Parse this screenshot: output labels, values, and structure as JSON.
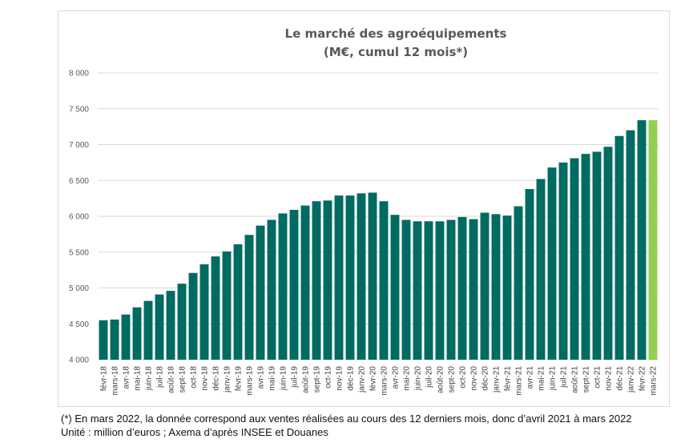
{
  "chart_data": {
    "type": "bar",
    "title_lines": [
      "Le marché des agroéquipements",
      "(M€, cumul 12 mois*)"
    ],
    "xlabel": "",
    "ylabel": "",
    "ylim": [
      4000,
      8000
    ],
    "yticks": [
      4000,
      4500,
      5000,
      5500,
      6000,
      6500,
      7000,
      7500,
      8000
    ],
    "ytick_labels": [
      "4 000",
      "4 500",
      "5 000",
      "5 500",
      "6 000",
      "6 500",
      "7 000",
      "7 500",
      "8 000"
    ],
    "grid": true,
    "legend": "none",
    "categories": [
      "févr-18",
      "mars-18",
      "avr-18",
      "mai-18",
      "juin-18",
      "juil-18",
      "août-18",
      "sept-18",
      "oct-18",
      "nov-18",
      "déc-18",
      "janv-19",
      "févr-19",
      "mars-19",
      "avr-19",
      "mai-19",
      "juin-19",
      "juil-19",
      "août-19",
      "sept-19",
      "oct-19",
      "nov-19",
      "déc-19",
      "janv-20",
      "févr-20",
      "mars-20",
      "avr-20",
      "mai-20",
      "juin-20",
      "juil-20",
      "août-20",
      "sept-20",
      "oct-20",
      "nov-20",
      "déc-20",
      "janv-21",
      "févr-21",
      "mars-21",
      "avr-21",
      "mai-21",
      "juin-21",
      "juil-21",
      "août-21",
      "sept-21",
      "oct-21",
      "nov-21",
      "déc-21",
      "janv-22",
      "févr-22",
      "mars-22"
    ],
    "values": [
      4550,
      4560,
      4630,
      4730,
      4820,
      4910,
      4960,
      5060,
      5210,
      5330,
      5440,
      5510,
      5610,
      5740,
      5870,
      5950,
      6040,
      6090,
      6150,
      6210,
      6220,
      6290,
      6290,
      6320,
      6330,
      6210,
      6020,
      5950,
      5930,
      5930,
      5930,
      5950,
      5990,
      5960,
      6050,
      6030,
      6010,
      6140,
      6380,
      6520,
      6680,
      6750,
      6810,
      6870,
      6900,
      6970,
      7120,
      7200,
      7340,
      7340
    ],
    "colors": {
      "bar": "#006b61",
      "highlight": "#92d050"
    },
    "highlight_index": 49
  },
  "footnote": {
    "line1": "(*) En mars 2022, la donnée correspond aux ventes réalisées au cours des 12 derniers mois, donc d’avril 2021 à mars 2022",
    "line2": "Unité : million d’euros ; Axema d’après INSEE et Douanes"
  }
}
